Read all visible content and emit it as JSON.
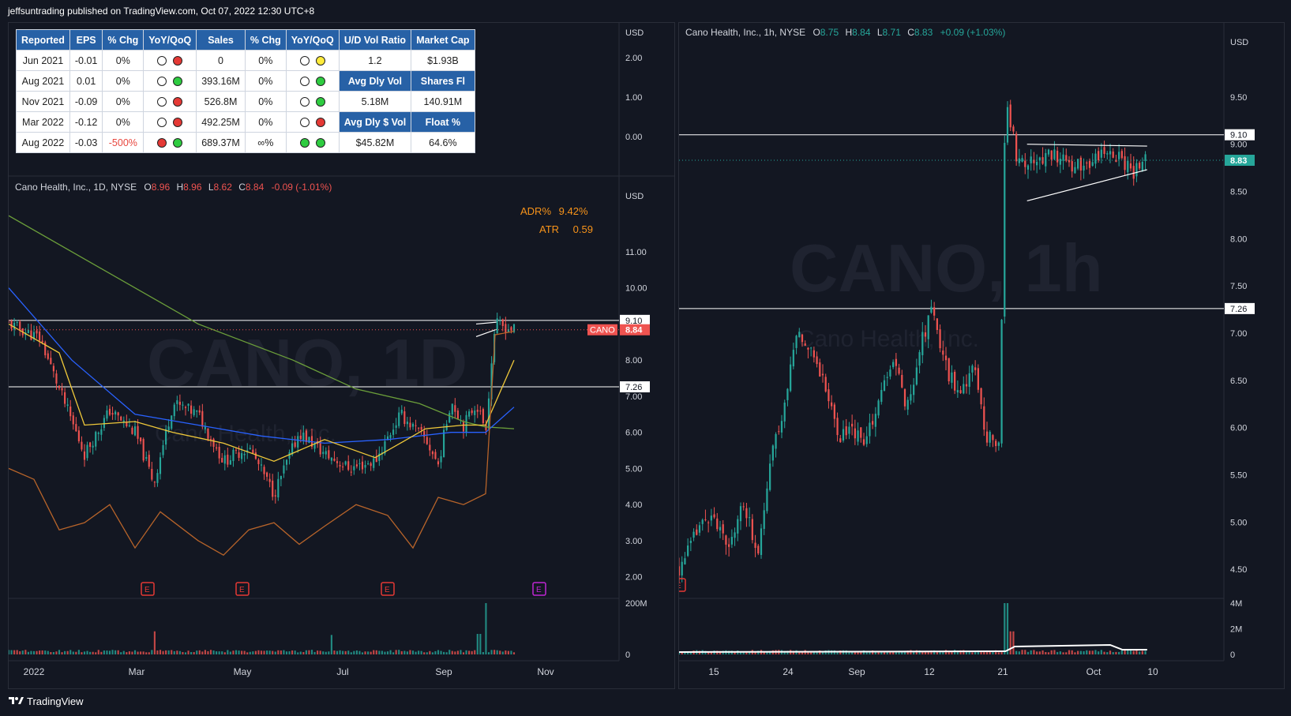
{
  "header": "jeffsuntrading published on TradingView.com, Oct 07, 2022 12:30 UTC+8",
  "footer": "TradingView",
  "colors": {
    "up": "#26a69a",
    "down": "#ef5350",
    "ema_fast": "#f0c93a",
    "ema_mid": "#2962ff",
    "sma_long": "#6b9e3a",
    "rs_line": "#b8642a",
    "line": "#ffffff",
    "bg": "#131722",
    "table_header": "#2761a6"
  },
  "fundamentals": {
    "headers": [
      "Reported",
      "EPS",
      "% Chg",
      "YoY/QoQ",
      "Sales",
      "% Chg",
      "YoY/QoQ",
      "U/D Vol Ratio",
      "Market Cap"
    ],
    "rows": [
      {
        "period": "Jun 2021",
        "eps": "-0.01",
        "eps_chg": "0%",
        "eps_dots": [
          "white",
          "red"
        ],
        "sales": "0",
        "sales_chg": "0%",
        "sales_dots": [
          "white",
          "yellow"
        ],
        "s1": "1.2",
        "s2": "$1.93B",
        "h": false
      },
      {
        "period": "Aug 2021",
        "eps": "0.01",
        "eps_chg": "0%",
        "eps_dots": [
          "white",
          "green"
        ],
        "sales": "393.16M",
        "sales_chg": "0%",
        "sales_dots": [
          "white",
          "green"
        ],
        "s1": "Avg Dly Vol",
        "s2": "Shares Fl",
        "h": true
      },
      {
        "period": "Nov 2021",
        "eps": "-0.09",
        "eps_chg": "0%",
        "eps_dots": [
          "white",
          "red"
        ],
        "sales": "526.8M",
        "sales_chg": "0%",
        "sales_dots": [
          "white",
          "green"
        ],
        "s1": "5.18M",
        "s2": "140.91M",
        "h": false
      },
      {
        "period": "Mar 2022",
        "eps": "-0.12",
        "eps_chg": "0%",
        "eps_dots": [
          "white",
          "red"
        ],
        "sales": "492.25M",
        "sales_chg": "0%",
        "sales_dots": [
          "white",
          "red"
        ],
        "s1": "Avg Dly $ Vol",
        "s2": "Float %",
        "h": true
      },
      {
        "period": "Aug 2022",
        "eps": "-0.03",
        "eps_chg": "-500%",
        "eps_dots": [
          "red",
          "green"
        ],
        "sales": "689.37M",
        "sales_chg": "∞%",
        "sales_dots": [
          "green",
          "green"
        ],
        "s1": "$45.82M",
        "s2": "64.6%",
        "h": false
      }
    ]
  },
  "left_chart": {
    "legend": {
      "name": "Cano Health, Inc., 1D, NYSE",
      "o": "8.96",
      "h": "8.96",
      "l": "8.62",
      "c": "8.84",
      "chg": "-0.09 (-1.01%)"
    },
    "watermark": {
      "symbol": "CANO, 1D",
      "name": "Cano Health, Inc."
    },
    "adr": {
      "label": "ADR%",
      "value": "9.42%"
    },
    "atr": {
      "label": "ATR",
      "value": "0.59"
    },
    "top_axis": {
      "unit": "USD",
      "ticks": [
        "2.00",
        "1.00",
        "0.00"
      ]
    },
    "price_axis": {
      "unit": "USD",
      "ticks": [
        "11.00",
        "10.00",
        "9.00",
        "8.00",
        "7.00",
        "6.00",
        "5.00",
        "4.00",
        "3.00",
        "2.00"
      ]
    },
    "hlines": [
      {
        "label": "9.10",
        "price": 9.1
      },
      {
        "label": "7.26",
        "price": 7.26
      }
    ],
    "price_tag": {
      "symbol": "CANO",
      "value": "8.84"
    },
    "volume_axis": [
      "200M",
      "0"
    ],
    "time_axis": [
      "2022",
      "Mar",
      "May",
      "Jul",
      "Sep",
      "Nov"
    ],
    "earnings_marker": "E"
  },
  "right_chart": {
    "legend": {
      "name": "Cano Health, Inc., 1h, NYSE",
      "o": "8.75",
      "h": "8.84",
      "l": "8.71",
      "c": "8.83",
      "chg": "+0.09 (+1.03%)"
    },
    "watermark": {
      "symbol": "CANO, 1h",
      "name": "Cano Health, Inc."
    },
    "price_axis": {
      "unit": "USD",
      "ticks": [
        "9.50",
        "9.00",
        "8.50",
        "8.00",
        "7.50",
        "7.00",
        "6.50",
        "6.00",
        "5.50",
        "5.00",
        "4.50"
      ]
    },
    "hlines": [
      {
        "label": "9.10",
        "price": 9.1
      },
      {
        "label": "7.26",
        "price": 7.26
      }
    ],
    "price_tag": {
      "value": "8.83"
    },
    "volume_axis": [
      "4M",
      "2M",
      "0"
    ],
    "time_axis": [
      "15",
      "24",
      "Sep",
      "12",
      "21",
      "Oct",
      "10"
    ],
    "earnings_marker": "E"
  },
  "chart_data": [
    {
      "type": "candlestick",
      "title": "Cano Health, Inc., 1D, NYSE",
      "ylim": [
        1.6,
        12.2
      ],
      "x": [
        "2022",
        "Mar",
        "May",
        "Jul",
        "Sep",
        "Nov"
      ],
      "close_path": [
        [
          0,
          9.0
        ],
        [
          0.05,
          8.6
        ],
        [
          0.08,
          7.2
        ],
        [
          0.12,
          5.4
        ],
        [
          0.16,
          6.6
        ],
        [
          0.2,
          6.0
        ],
        [
          0.23,
          4.6
        ],
        [
          0.26,
          6.8
        ],
        [
          0.3,
          6.5
        ],
        [
          0.34,
          5.2
        ],
        [
          0.38,
          5.6
        ],
        [
          0.42,
          4.3
        ],
        [
          0.46,
          6.0
        ],
        [
          0.5,
          5.4
        ],
        [
          0.54,
          5.0
        ],
        [
          0.58,
          5.2
        ],
        [
          0.62,
          6.5
        ],
        [
          0.66,
          5.8
        ],
        [
          0.68,
          5.1
        ],
        [
          0.7,
          6.9
        ],
        [
          0.72,
          6.2
        ],
        [
          0.74,
          6.8
        ],
        [
          0.755,
          6.1
        ],
        [
          0.77,
          9.0
        ],
        [
          0.8,
          8.84
        ]
      ],
      "ema_fast": [
        [
          0,
          9.0
        ],
        [
          0.08,
          8.2
        ],
        [
          0.12,
          6.2
        ],
        [
          0.2,
          6.3
        ],
        [
          0.26,
          6.0
        ],
        [
          0.34,
          5.7
        ],
        [
          0.42,
          5.2
        ],
        [
          0.5,
          5.8
        ],
        [
          0.58,
          5.3
        ],
        [
          0.66,
          6.1
        ],
        [
          0.72,
          6.2
        ],
        [
          0.755,
          6.2
        ],
        [
          0.8,
          8.0
        ]
      ],
      "ema_mid": [
        [
          0,
          10.0
        ],
        [
          0.1,
          8.0
        ],
        [
          0.2,
          6.5
        ],
        [
          0.3,
          6.2
        ],
        [
          0.4,
          5.9
        ],
        [
          0.5,
          5.7
        ],
        [
          0.6,
          5.8
        ],
        [
          0.7,
          6.0
        ],
        [
          0.755,
          6.0
        ],
        [
          0.8,
          6.7
        ]
      ],
      "sma_long": [
        [
          0,
          12.0
        ],
        [
          0.15,
          10.5
        ],
        [
          0.3,
          9.0
        ],
        [
          0.45,
          8.0
        ],
        [
          0.55,
          7.2
        ],
        [
          0.65,
          6.8
        ],
        [
          0.72,
          6.3
        ],
        [
          0.755,
          6.15
        ],
        [
          0.8,
          6.1
        ]
      ],
      "rs_line": [
        [
          0,
          5.0
        ],
        [
          0.04,
          4.7
        ],
        [
          0.08,
          3.3
        ],
        [
          0.12,
          3.5
        ],
        [
          0.16,
          4.0
        ],
        [
          0.2,
          2.8
        ],
        [
          0.24,
          3.8
        ],
        [
          0.3,
          3.0
        ],
        [
          0.34,
          2.6
        ],
        [
          0.38,
          3.3
        ],
        [
          0.42,
          3.5
        ],
        [
          0.46,
          2.9
        ],
        [
          0.5,
          3.4
        ],
        [
          0.55,
          4.0
        ],
        [
          0.6,
          3.7
        ],
        [
          0.64,
          2.8
        ],
        [
          0.68,
          4.2
        ],
        [
          0.72,
          4.0
        ],
        [
          0.755,
          4.3
        ],
        [
          0.77,
          8.7
        ],
        [
          0.8,
          8.8
        ]
      ],
      "volume_spikes": [
        [
          0.23,
          0.45
        ],
        [
          0.51,
          0.38
        ],
        [
          0.755,
          1.0
        ],
        [
          0.745,
          0.4
        ]
      ],
      "earnings_at": [
        0.22,
        0.37,
        0.6,
        0.84
      ]
    },
    {
      "type": "candlestick",
      "title": "Cano Health, Inc., 1h, NYSE",
      "ylim": [
        4.2,
        9.95
      ],
      "x": [
        "15",
        "24",
        "Sep",
        "12",
        "21",
        "Oct",
        "10"
      ],
      "close_path": [
        [
          0,
          4.5
        ],
        [
          0.03,
          4.9
        ],
        [
          0.05,
          5.1
        ],
        [
          0.08,
          4.7
        ],
        [
          0.1,
          5.2
        ],
        [
          0.13,
          4.7
        ],
        [
          0.15,
          5.7
        ],
        [
          0.17,
          6.2
        ],
        [
          0.19,
          7.0
        ],
        [
          0.21,
          6.9
        ],
        [
          0.23,
          6.6
        ],
        [
          0.26,
          5.9
        ],
        [
          0.28,
          6.0
        ],
        [
          0.3,
          5.8
        ],
        [
          0.33,
          6.4
        ],
        [
          0.35,
          6.7
        ],
        [
          0.37,
          6.2
        ],
        [
          0.39,
          6.8
        ],
        [
          0.41,
          7.3
        ],
        [
          0.43,
          6.7
        ],
        [
          0.45,
          6.4
        ],
        [
          0.48,
          6.6
        ],
        [
          0.5,
          5.9
        ],
        [
          0.52,
          5.8
        ],
        [
          0.53,
          9.5
        ],
        [
          0.55,
          8.8
        ],
        [
          0.6,
          8.9
        ],
        [
          0.65,
          8.75
        ],
        [
          0.7,
          8.95
        ],
        [
          0.74,
          8.7
        ],
        [
          0.76,
          8.83
        ]
      ],
      "volume_spikes": [
        [
          0.53,
          1.0
        ],
        [
          0.54,
          0.45
        ]
      ],
      "earnings_at": [
        0.0
      ]
    }
  ]
}
